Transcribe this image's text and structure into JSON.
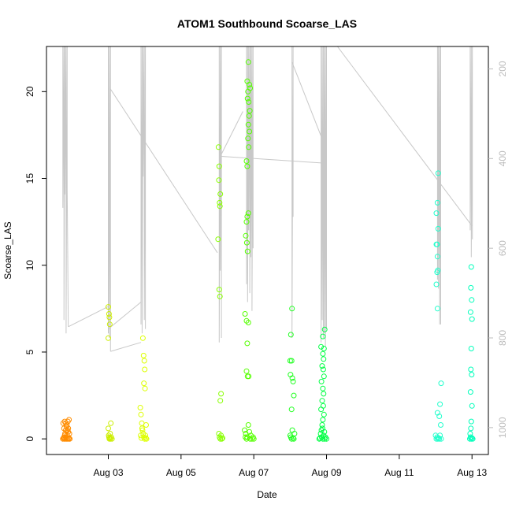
{
  "chart_data": {
    "type": "scatter",
    "title": "ATOM1 Southbound Scoarse_LAS",
    "xlabel": "Date",
    "ylabel": "Scoarse_LAS",
    "x_tick_labels": [
      "Aug 03",
      "Aug 05",
      "Aug 07",
      "Aug 09",
      "Aug 11",
      "Aug 13"
    ],
    "x_tick_day": [
      3,
      5,
      7,
      9,
      11,
      13
    ],
    "xlim": [
      1.3,
      13.45
    ],
    "ylim": [
      -0.9,
      22.6
    ],
    "y_ticks": [
      0,
      5,
      10,
      15,
      20
    ],
    "y_tick_labels": [
      "0",
      "5",
      "10",
      "15",
      "20"
    ],
    "right_axis": {
      "ylim": [
        1060,
        150
      ],
      "ticks": [
        200,
        400,
        600,
        800,
        1000
      ],
      "tick_labels": [
        "200",
        "400",
        "600",
        "800",
        "1000"
      ],
      "color": "#bdbdbd"
    },
    "grid": false,
    "legend": "none",
    "marker": "open-circle",
    "track_color": "#c8c8c8",
    "track_segments": [
      {
        "x": [
          1.75,
          1.75,
          1.78,
          1.78,
          1.81,
          1.81,
          1.84,
          1.84,
          1.87,
          1.87,
          1.9
        ],
        "y": [
          150,
          510,
          150,
          760,
          150,
          480,
          150,
          790,
          150,
          470,
          775
        ]
      },
      {
        "x": [
          1.9,
          3.0
        ],
        "y": [
          775,
          730
        ]
      },
      {
        "x": [
          3.0,
          3.0,
          3.03,
          3.03,
          3.06,
          3.06
        ],
        "y": [
          150,
          790,
          150,
          800,
          150,
          830
        ]
      },
      {
        "x": [
          3.06,
          3.9
        ],
        "y": [
          830,
          810
        ]
      },
      {
        "x": [
          3.0,
          3.9
        ],
        "y": [
          780,
          720
        ]
      },
      {
        "x": [
          3.9,
          3.9,
          3.93,
          3.93,
          3.96,
          3.96,
          3.99,
          3.99,
          4.02,
          4.02
        ],
        "y": [
          150,
          770,
          150,
          790,
          150,
          440,
          150,
          760,
          150,
          780
        ]
      },
      {
        "x": [
          3.06,
          6.0
        ],
        "y": [
          245,
          610
        ]
      },
      {
        "x": [
          6.05,
          6.05,
          6.08,
          6.08,
          6.11,
          6.11
        ],
        "y": [
          150,
          810,
          150,
          650,
          150,
          800
        ]
      },
      {
        "x": [
          6.08,
          6.7
        ],
        "y": [
          395,
          295
        ]
      },
      {
        "x": [
          6.11,
          8.9
        ],
        "y": [
          395,
          410
        ]
      },
      {
        "x": [
          6.8,
          6.8,
          6.83,
          6.83,
          6.86,
          6.86,
          6.89,
          6.89,
          6.92,
          6.92,
          6.95,
          6.95,
          6.98,
          6.98
        ],
        "y": [
          150,
          680,
          150,
          720,
          150,
          560,
          150,
          700,
          150,
          620,
          150,
          740,
          150,
          600
        ]
      },
      {
        "x": [
          8.05,
          8.05,
          8.08,
          8.08
        ],
        "y": [
          150,
          800,
          150,
          530
        ]
      },
      {
        "x": [
          8.05,
          8.85
        ],
        "y": [
          185,
          350
        ]
      },
      {
        "x": [
          8.85,
          8.85,
          8.88,
          8.88,
          8.91,
          8.91,
          8.94,
          8.94,
          8.97,
          8.97,
          9.0,
          9.0
        ],
        "y": [
          150,
          810,
          150,
          760,
          150,
          800,
          150,
          790,
          150,
          820,
          150,
          780
        ]
      },
      {
        "x": [
          9.3,
          13.0
        ],
        "y": [
          150,
          550
        ]
      },
      {
        "x": [
          12.05,
          12.05,
          12.08,
          12.08,
          12.11,
          12.11,
          12.14,
          12.14
        ],
        "y": [
          150,
          670,
          150,
          690,
          150,
          770,
          150,
          770
        ]
      },
      {
        "x": [
          12.95,
          12.95,
          12.98,
          12.98,
          13.01,
          13.01
        ],
        "y": [
          150,
          560,
          150,
          620,
          150,
          580
        ]
      }
    ],
    "series": [
      {
        "color": "#ff8c00",
        "points": [
          [
            1.75,
            0
          ],
          [
            1.77,
            0.05
          ],
          [
            1.78,
            0.1
          ],
          [
            1.79,
            0
          ],
          [
            1.8,
            0.2
          ],
          [
            1.81,
            0.3
          ],
          [
            1.82,
            0
          ],
          [
            1.83,
            0.5
          ],
          [
            1.84,
            0.1
          ],
          [
            1.85,
            0
          ],
          [
            1.86,
            0.8
          ],
          [
            1.87,
            0.2
          ],
          [
            1.88,
            0
          ],
          [
            1.89,
            1.0
          ],
          [
            1.9,
            0.6
          ],
          [
            1.91,
            0
          ],
          [
            1.92,
            1.1
          ],
          [
            1.93,
            0.3
          ],
          [
            1.76,
            0.9
          ],
          [
            1.8,
            1.0
          ],
          [
            1.85,
            0.7
          ],
          [
            1.9,
            0.4
          ],
          [
            1.78,
            0.6
          ],
          [
            1.83,
            0.9
          ],
          [
            1.88,
            0.5
          ],
          [
            1.92,
            0.05
          ],
          [
            1.94,
            0
          ]
        ]
      },
      {
        "color": "#ccee00",
        "points": [
          [
            3.0,
            7.6
          ],
          [
            3.02,
            7.2
          ],
          [
            3.03,
            7.0
          ],
          [
            3.04,
            6.6
          ],
          [
            3.0,
            5.8
          ],
          [
            3.01,
            0.2
          ],
          [
            3.02,
            0.1
          ],
          [
            3.03,
            0
          ],
          [
            3.05,
            0.3
          ],
          [
            3.06,
            0
          ],
          [
            3.07,
            0.9
          ],
          [
            3.08,
            0.1
          ],
          [
            3.04,
            0.05
          ],
          [
            3.0,
            0.6
          ],
          [
            3.1,
            0
          ]
        ]
      },
      {
        "color": "#ddff00",
        "points": [
          [
            3.88,
            1.8
          ],
          [
            3.9,
            1.4
          ],
          [
            3.92,
            0.9
          ],
          [
            3.94,
            0.5
          ],
          [
            3.96,
            0.3
          ],
          [
            3.98,
            0.1
          ],
          [
            4.0,
            0
          ],
          [
            4.02,
            0.2
          ],
          [
            4.04,
            0.8
          ],
          [
            3.95,
            5.8
          ],
          [
            3.97,
            4.8
          ],
          [
            3.99,
            4.5
          ],
          [
            4.0,
            4.0
          ],
          [
            3.98,
            3.2
          ],
          [
            4.01,
            2.9
          ],
          [
            3.93,
            0.6
          ],
          [
            3.91,
            0.05
          ],
          [
            3.89,
            0.2
          ],
          [
            4.03,
            0.05
          ],
          [
            4.05,
            0
          ]
        ]
      },
      {
        "color": "#88ff00",
        "points": [
          [
            6.03,
            16.8
          ],
          [
            6.05,
            15.7
          ],
          [
            6.04,
            14.9
          ],
          [
            6.08,
            14.1
          ],
          [
            6.06,
            13.6
          ],
          [
            6.07,
            13.4
          ],
          [
            6.02,
            11.5
          ],
          [
            6.05,
            8.6
          ],
          [
            6.07,
            8.2
          ],
          [
            6.1,
            2.6
          ],
          [
            6.08,
            2.2
          ],
          [
            6.04,
            0.3
          ],
          [
            6.06,
            0.1
          ],
          [
            6.08,
            0
          ],
          [
            6.1,
            0.2
          ],
          [
            6.12,
            0
          ],
          [
            6.14,
            0.05
          ]
        ]
      },
      {
        "color": "#55ff00",
        "points": [
          [
            6.85,
            21.7
          ],
          [
            6.82,
            20.6
          ],
          [
            6.88,
            20.4
          ],
          [
            6.9,
            20.2
          ],
          [
            6.84,
            20.0
          ],
          [
            6.83,
            19.6
          ],
          [
            6.86,
            19.4
          ],
          [
            6.89,
            18.9
          ],
          [
            6.87,
            18.6
          ],
          [
            6.85,
            18.1
          ],
          [
            6.88,
            17.7
          ],
          [
            6.84,
            17.3
          ],
          [
            6.86,
            16.8
          ],
          [
            6.8,
            16.0
          ],
          [
            6.82,
            15.7
          ],
          [
            6.85,
            13.0
          ],
          [
            6.82,
            12.8
          ],
          [
            6.8,
            12.5
          ],
          [
            6.78,
            11.7
          ],
          [
            6.81,
            11.3
          ],
          [
            6.83,
            10.8
          ],
          [
            6.76,
            7.2
          ],
          [
            6.8,
            6.8
          ],
          [
            6.85,
            6.7
          ],
          [
            6.82,
            5.5
          ],
          [
            6.8,
            3.9
          ],
          [
            6.83,
            3.6
          ],
          [
            6.86,
            3.6
          ],
          [
            6.75,
            0.5
          ],
          [
            6.78,
            0.3
          ],
          [
            6.8,
            0
          ],
          [
            6.82,
            0.1
          ],
          [
            6.85,
            0.8
          ],
          [
            6.88,
            0.4
          ],
          [
            6.9,
            0
          ],
          [
            6.92,
            0.2
          ],
          [
            6.95,
            0
          ],
          [
            6.98,
            0.1
          ],
          [
            7.0,
            0
          ],
          [
            6.77,
            0.1
          ]
        ]
      },
      {
        "color": "#22ff22",
        "points": [
          [
            8.05,
            7.5
          ],
          [
            8.02,
            6.0
          ],
          [
            8.0,
            4.5
          ],
          [
            8.04,
            4.5
          ],
          [
            8.01,
            3.7
          ],
          [
            8.06,
            3.5
          ],
          [
            8.08,
            3.3
          ],
          [
            8.1,
            2.5
          ],
          [
            8.04,
            1.7
          ],
          [
            8.06,
            0.5
          ],
          [
            8.0,
            0.2
          ],
          [
            8.02,
            0.1
          ],
          [
            8.04,
            0
          ],
          [
            8.08,
            0.05
          ],
          [
            8.1,
            0
          ],
          [
            8.12,
            0.3
          ]
        ]
      },
      {
        "color": "#00ff44",
        "points": [
          [
            8.95,
            6.3
          ],
          [
            8.9,
            5.9
          ],
          [
            8.85,
            5.3
          ],
          [
            8.93,
            5.2
          ],
          [
            8.9,
            4.9
          ],
          [
            8.92,
            4.6
          ],
          [
            8.88,
            4.2
          ],
          [
            8.91,
            4.0
          ],
          [
            8.93,
            3.6
          ],
          [
            8.86,
            3.3
          ],
          [
            8.9,
            2.9
          ],
          [
            8.92,
            2.6
          ],
          [
            8.88,
            2.2
          ],
          [
            8.91,
            1.9
          ],
          [
            8.85,
            1.7
          ],
          [
            8.93,
            1.4
          ],
          [
            8.9,
            1.1
          ],
          [
            8.88,
            0.8
          ],
          [
            8.86,
            0.5
          ],
          [
            8.84,
            0.3
          ],
          [
            8.87,
            0.1
          ],
          [
            8.9,
            0
          ],
          [
            8.92,
            0.2
          ],
          [
            8.95,
            0
          ],
          [
            8.97,
            0.1
          ],
          [
            9.0,
            0
          ],
          [
            8.82,
            0.05
          ],
          [
            8.8,
            0
          ],
          [
            8.89,
            0.6
          ],
          [
            8.94,
            0.4
          ]
        ]
      },
      {
        "color": "#22ffcc",
        "points": [
          [
            12.07,
            15.3
          ],
          [
            12.05,
            13.6
          ],
          [
            12.02,
            13.0
          ],
          [
            12.07,
            12.1
          ],
          [
            12.04,
            11.2
          ],
          [
            12.02,
            11.2
          ],
          [
            12.05,
            10.5
          ],
          [
            12.06,
            9.7
          ],
          [
            12.04,
            9.6
          ],
          [
            12.02,
            8.9
          ],
          [
            12.05,
            7.5
          ],
          [
            12.15,
            3.2
          ],
          [
            12.12,
            2.0
          ],
          [
            12.05,
            1.5
          ],
          [
            12.1,
            1.3
          ],
          [
            12.14,
            0.8
          ],
          [
            12.0,
            0.2
          ],
          [
            12.02,
            0
          ],
          [
            12.04,
            0.1
          ],
          [
            12.06,
            0
          ],
          [
            12.08,
            0.05
          ],
          [
            12.1,
            0
          ],
          [
            12.12,
            0.2
          ],
          [
            12.15,
            0
          ]
        ]
      },
      {
        "color": "#00ffbb",
        "points": [
          [
            12.98,
            9.9
          ],
          [
            12.97,
            8.7
          ],
          [
            12.99,
            8.0
          ],
          [
            12.96,
            7.3
          ],
          [
            13.0,
            6.9
          ],
          [
            12.98,
            5.2
          ],
          [
            12.97,
            4.0
          ],
          [
            12.99,
            3.7
          ],
          [
            12.96,
            2.7
          ],
          [
            13.0,
            1.9
          ],
          [
            12.98,
            1.0
          ],
          [
            12.97,
            0.6
          ],
          [
            12.95,
            0.3
          ],
          [
            12.96,
            0.1
          ],
          [
            12.98,
            0
          ],
          [
            13.0,
            0.05
          ],
          [
            13.02,
            0
          ],
          [
            12.94,
            0
          ]
        ]
      }
    ]
  }
}
